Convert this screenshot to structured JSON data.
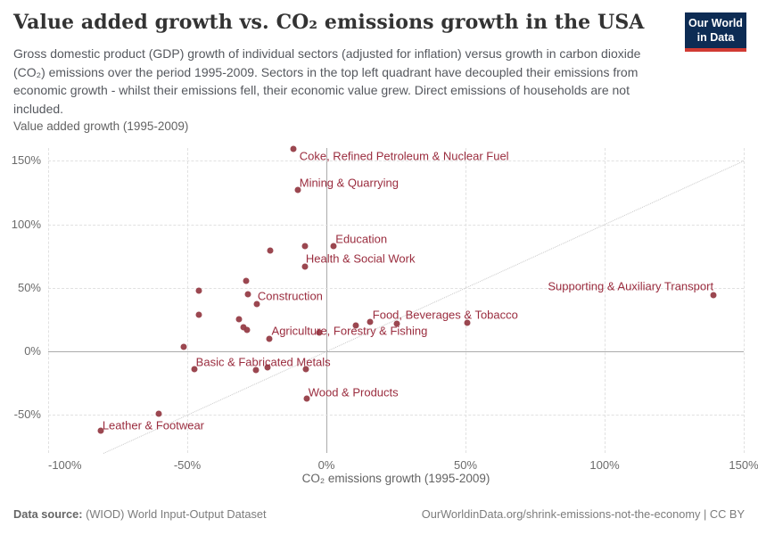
{
  "logo": {
    "line1": "Our World",
    "line2": "in Data"
  },
  "footer": {
    "source_label": "Data source:",
    "source_value": " (WIOD) World Input-Output Dataset",
    "credit": "OurWorldinData.org/shrink-emissions-not-the-economy | CC BY"
  },
  "chart_data": {
    "type": "scatter",
    "title": "Value added growth vs. CO₂ emissions growth in the USA",
    "subtitle": "Gross domestic product (GDP) growth of individual sectors (adjusted for inflation) versus growth in carbon dioxide (CO₂) emissions over the period 1995-2009. Sectors in the top left quadrant have decoupled their emissions from economic growth - whilst their emissions fell, their economic value grew. Direct emissions of households are not included.",
    "xlabel": "CO₂ emissions growth (1995-2009)",
    "ylabel": "Value added growth (1995-2009)",
    "xlim": [
      -100,
      150
    ],
    "ylim": [
      -80,
      160
    ],
    "xticks": [
      -100,
      -50,
      0,
      50,
      100,
      150
    ],
    "yticks": [
      150,
      100,
      50,
      0,
      -50
    ],
    "tick_suffix": "%",
    "grid": true,
    "identity_line": true,
    "colors": {
      "point": "#963d47",
      "label": "#9a2c3e"
    },
    "points": [
      {
        "x": -11.7,
        "y": 159,
        "label": "Coke, Refined Petroleum & Nuclear Fuel"
      },
      {
        "x": -10.4,
        "y": 127,
        "label": "Mining & Quarrying"
      },
      {
        "x": 2.5,
        "y": 83,
        "label": "Education"
      },
      {
        "x": -7.7,
        "y": 67,
        "label": "Health & Social Work"
      },
      {
        "x": -28.3,
        "y": 45,
        "label": "Construction"
      },
      {
        "x": -2.5,
        "y": 15,
        "label": "Agriculture, Forestry & Fishing"
      },
      {
        "x": 50.6,
        "y": 22.5,
        "label": "Food, Beverages & Tobacco"
      },
      {
        "x": 139,
        "y": 44.5,
        "label": "Supporting & Auxiliary Transport"
      },
      {
        "x": -47.4,
        "y": -14,
        "label": "Basic & Fabricated Metals"
      },
      {
        "x": -7,
        "y": -37,
        "label": "Wood & Products"
      },
      {
        "x": -81,
        "y": -62.5,
        "label": "Leather & Footwear"
      },
      {
        "x": -7.7,
        "y": 83
      },
      {
        "x": -20.2,
        "y": 79.5
      },
      {
        "x": -29,
        "y": 55.5
      },
      {
        "x": -45.9,
        "y": 47.5
      },
      {
        "x": -25,
        "y": 37.5
      },
      {
        "x": -45.8,
        "y": 29
      },
      {
        "x": -31.3,
        "y": 25
      },
      {
        "x": -29.9,
        "y": 19
      },
      {
        "x": -28.5,
        "y": 16.5
      },
      {
        "x": -20.5,
        "y": 10
      },
      {
        "x": -51.4,
        "y": 3.5
      },
      {
        "x": 10.5,
        "y": 20.5
      },
      {
        "x": 15.7,
        "y": 23.5
      },
      {
        "x": 25.3,
        "y": 22
      },
      {
        "x": -25.2,
        "y": -14.5
      },
      {
        "x": -21.3,
        "y": -12.3
      },
      {
        "x": -7.4,
        "y": -14
      },
      {
        "x": -60.3,
        "y": -49
      }
    ],
    "annotations": [
      {
        "text": "Coke, Refined Petroleum & Nuclear Fuel",
        "x": -9.7,
        "y": 153.5
      },
      {
        "text": "Mining & Quarrying",
        "x": -9.7,
        "y": 132.8
      },
      {
        "text": "Education",
        "x": 3.3,
        "y": 88.4
      },
      {
        "text": "Health & Social Work",
        "x": -7.4,
        "y": 73.0
      },
      {
        "text": "Construction",
        "x": -24.7,
        "y": 43.7
      },
      {
        "text": "Agriculture, Forestry & Fishing",
        "x": -19.7,
        "y": 16.0
      },
      {
        "text": "Food, Beverages & Tobacco",
        "x": 16.6,
        "y": 28.8
      },
      {
        "text": "Supporting & Auxiliary Transport",
        "x": 79.6,
        "y": 51.4
      },
      {
        "text": "Basic & Fabricated Metals",
        "x": -46.9,
        "y": -8.7
      },
      {
        "text": "Wood & Products",
        "x": -6.5,
        "y": -32.1
      },
      {
        "text": "Leather & Footwear",
        "x": -80.5,
        "y": -58.0
      }
    ]
  }
}
